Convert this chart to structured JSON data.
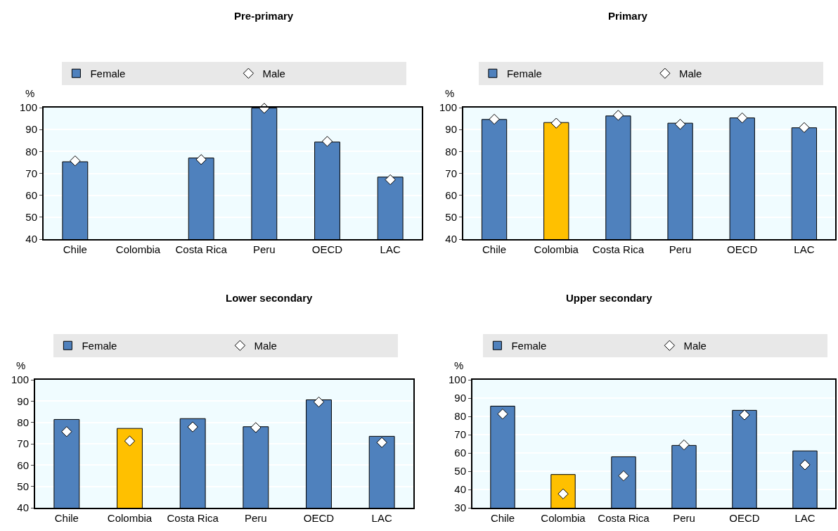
{
  "chart_data": [
    {
      "type": "bar",
      "title": "Pre-primary",
      "ylabel": "%",
      "categories": [
        "Chile",
        "Colombia",
        "Costa Rica",
        "Peru",
        "OECD",
        "LAC"
      ],
      "ylim": [
        40,
        100
      ],
      "yticks": [
        40,
        50,
        60,
        70,
        80,
        90,
        100
      ],
      "grid": "y",
      "legend": "top",
      "series": [
        {
          "name": "Female",
          "color": "#4f81bd",
          "colors": [
            "#4f81bd",
            "#ffc000",
            "#4f81bd",
            "#4f81bd",
            "#4f81bd",
            "#4f81bd"
          ],
          "values": [
            75.3,
            null,
            77.0,
            99.8,
            84.3,
            68.3
          ]
        },
        {
          "name": "Male",
          "type": "scatter",
          "marker": "diamond",
          "color": "#ffffff",
          "values": [
            75.7,
            null,
            76.3,
            99.7,
            84.6,
            67.1
          ]
        }
      ]
    },
    {
      "type": "bar",
      "title": "Primary",
      "ylabel": "%",
      "categories": [
        "Chile",
        "Colombia",
        "Costa Rica",
        "Peru",
        "OECD",
        "LAC"
      ],
      "ylim": [
        40,
        100
      ],
      "yticks": [
        40,
        50,
        60,
        70,
        80,
        90,
        100
      ],
      "grid": "y",
      "legend": "top",
      "series": [
        {
          "name": "Female",
          "color": "#4f81bd",
          "colors": [
            "#4f81bd",
            "#ffc000",
            "#4f81bd",
            "#4f81bd",
            "#4f81bd",
            "#4f81bd"
          ],
          "values": [
            94.6,
            93.2,
            96.2,
            92.9,
            95.3,
            90.8
          ]
        },
        {
          "name": "Male",
          "type": "scatter",
          "marker": "diamond",
          "color": "#ffffff",
          "values": [
            94.7,
            92.9,
            96.5,
            92.4,
            95.3,
            90.9
          ]
        }
      ]
    },
    {
      "type": "bar",
      "title": "Lower secondary",
      "ylabel": "%",
      "categories": [
        "Chile",
        "Colombia",
        "Costa Rica",
        "Peru",
        "OECD",
        "LAC"
      ],
      "ylim": [
        40,
        100
      ],
      "yticks": [
        40,
        50,
        60,
        70,
        80,
        90,
        100
      ],
      "grid": "y",
      "legend": "top",
      "series": [
        {
          "name": "Female",
          "color": "#4f81bd",
          "colors": [
            "#4f81bd",
            "#ffc000",
            "#4f81bd",
            "#4f81bd",
            "#4f81bd",
            "#4f81bd"
          ],
          "values": [
            81.4,
            77.2,
            81.8,
            78.0,
            90.6,
            73.5
          ]
        },
        {
          "name": "Male",
          "type": "scatter",
          "marker": "diamond",
          "color": "#ffffff",
          "values": [
            75.7,
            71.3,
            77.9,
            77.6,
            89.6,
            70.6
          ]
        }
      ]
    },
    {
      "type": "bar",
      "title": "Upper secondary",
      "ylabel": "%",
      "categories": [
        "Chile",
        "Colombia",
        "Costa Rica",
        "Peru",
        "OECD",
        "LAC"
      ],
      "ylim": [
        30,
        100
      ],
      "yticks": [
        30,
        40,
        50,
        60,
        70,
        80,
        90,
        100
      ],
      "grid": "y",
      "legend": "top",
      "series": [
        {
          "name": "Female",
          "color": "#4f81bd",
          "colors": [
            "#4f81bd",
            "#ffc000",
            "#4f81bd",
            "#4f81bd",
            "#4f81bd",
            "#4f81bd"
          ],
          "values": [
            85.6,
            48.2,
            57.9,
            64.1,
            83.3,
            61.1
          ]
        },
        {
          "name": "Male",
          "type": "scatter",
          "marker": "diamond",
          "color": "#ffffff",
          "values": [
            81.3,
            37.6,
            47.5,
            64.4,
            80.8,
            53.5
          ]
        }
      ]
    }
  ]
}
